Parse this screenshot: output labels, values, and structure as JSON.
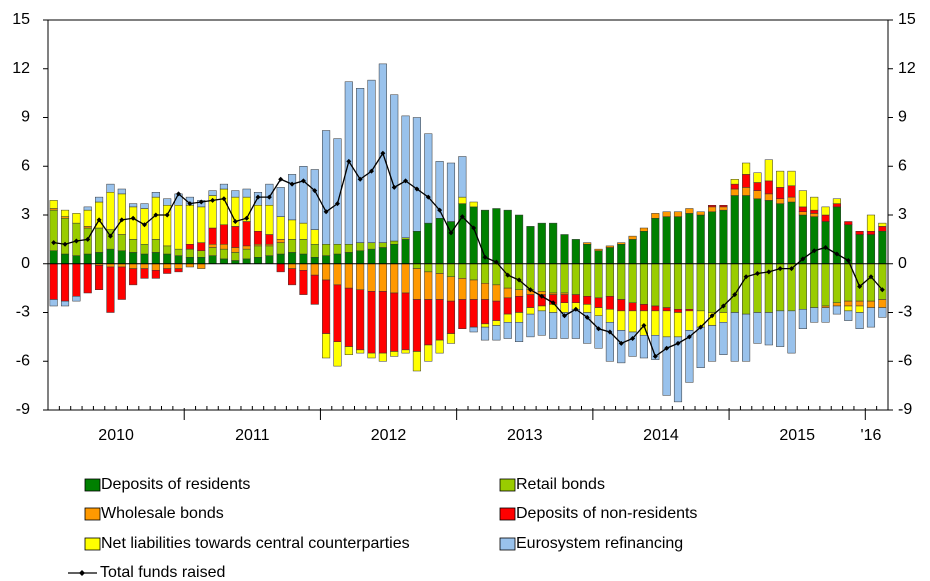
{
  "chart_data": {
    "type": "bar",
    "stacked": true,
    "categories": [
      null,
      null,
      null,
      null,
      null,
      "2010",
      null,
      null,
      null,
      null,
      null,
      null,
      null,
      null,
      null,
      null,
      null,
      "2011",
      null,
      null,
      null,
      null,
      null,
      null,
      null,
      null,
      null,
      null,
      null,
      "2012",
      null,
      null,
      null,
      null,
      null,
      null,
      null,
      null,
      null,
      null,
      null,
      "2013",
      null,
      null,
      null,
      null,
      null,
      null,
      null,
      null,
      null,
      null,
      null,
      "2014",
      null,
      null,
      null,
      null,
      null,
      null,
      null,
      null,
      null,
      null,
      null,
      "2015",
      null,
      null,
      null,
      null,
      null,
      null,
      "'16",
      null
    ],
    "ylim": [
      -9,
      15
    ],
    "yticks": [
      -9,
      -6,
      -3,
      0,
      3,
      6,
      9,
      12,
      15
    ],
    "right_axis": true,
    "series": [
      {
        "name": "Deposits of residents",
        "color": "#008000",
        "values": [
          0.8,
          0.6,
          0.5,
          0.6,
          0.7,
          0.9,
          0.8,
          0.7,
          0.6,
          0.7,
          0.6,
          0.5,
          0.4,
          0.4,
          0.5,
          0.3,
          0.2,
          0.3,
          0.4,
          0.5,
          0.6,
          0.7,
          0.6,
          0.4,
          0.5,
          0.6,
          0.7,
          0.8,
          0.9,
          1.0,
          1.2,
          1.5,
          2.0,
          2.5,
          2.8,
          2.6,
          3.7,
          3.5,
          3.3,
          3.4,
          3.3,
          3.0,
          2.3,
          2.5,
          2.5,
          1.8,
          1.5,
          1.2,
          0.8,
          1.0,
          1.2,
          1.5,
          2.0,
          2.8,
          2.9,
          2.9,
          3.1,
          3.0,
          3.2,
          3.3,
          4.2,
          4.2,
          4.0,
          3.9,
          3.7,
          3.8,
          3.0,
          2.9,
          2.6,
          3.5,
          2.4,
          1.8,
          1.8,
          2.0
        ]
      },
      {
        "name": "Retail bonds",
        "color": "#99CC00",
        "values": [
          2.5,
          2.2,
          2.0,
          1.6,
          1.5,
          1.2,
          1.0,
          0.8,
          0.6,
          0.8,
          0.5,
          0.4,
          0.5,
          0.4,
          0.5,
          0.6,
          0.5,
          0.6,
          0.7,
          0.6,
          0.7,
          0.8,
          0.9,
          0.8,
          0.7,
          0.6,
          0.5,
          0.5,
          0.4,
          0.3,
          0.2,
          0.1,
          -0.3,
          -0.5,
          -0.6,
          -0.8,
          -0.9,
          -1.0,
          -1.2,
          -1.3,
          -1.5,
          -1.6,
          -1.6,
          -1.7,
          -1.8,
          -1.8,
          -1.9,
          -2.0,
          -2.1,
          -2.0,
          -2.2,
          -2.4,
          -2.5,
          -2.6,
          -2.7,
          -2.8,
          -2.8,
          -2.9,
          -3.0,
          -3.0,
          -3.0,
          -3.1,
          -3.0,
          -3.0,
          -2.9,
          -2.9,
          -2.8,
          -2.7,
          -2.6,
          -2.4,
          -2.3,
          -2.3,
          -2.3,
          -2.2
        ]
      },
      {
        "name": "Wholesale bonds",
        "color": "#FF9900",
        "values": [
          0.1,
          0.1,
          0.0,
          0.1,
          -0.1,
          -0.2,
          -0.2,
          -0.3,
          -0.3,
          -0.4,
          -0.3,
          -0.3,
          -0.2,
          -0.3,
          0.2,
          0.3,
          0.3,
          0.2,
          0.1,
          0.1,
          0.2,
          -0.3,
          -0.4,
          -0.7,
          -1.0,
          -1.3,
          -1.5,
          -1.6,
          -1.7,
          -1.7,
          -1.8,
          -1.8,
          -1.9,
          -1.7,
          -1.6,
          -1.5,
          -1.3,
          -1.2,
          -1.0,
          -1.0,
          -0.6,
          -0.4,
          -0.3,
          -0.2,
          -0.1,
          -0.1,
          0.0,
          0.1,
          0.1,
          0.1,
          0.1,
          0.2,
          0.2,
          0.3,
          0.3,
          0.3,
          0.3,
          0.2,
          0.3,
          0.2,
          0.4,
          0.5,
          0.5,
          0.4,
          0.3,
          0.3,
          0.2,
          0.2,
          -0.1,
          -0.2,
          -0.3,
          -0.3,
          -0.4,
          -0.5
        ]
      },
      {
        "name": "Deposits of non-residents",
        "color": "#FF0000",
        "values": [
          -2.2,
          -2.3,
          -2.0,
          -1.8,
          -1.5,
          -2.8,
          -2.0,
          -1.0,
          -0.6,
          -0.5,
          -0.3,
          -0.2,
          0.3,
          0.5,
          1.0,
          1.2,
          1.3,
          1.5,
          0.8,
          0.6,
          -0.5,
          -1.0,
          -1.5,
          -1.8,
          -3.3,
          -3.5,
          -3.6,
          -3.7,
          -3.8,
          -3.8,
          -3.6,
          -3.5,
          -3.2,
          -2.8,
          -2.5,
          -2.0,
          -1.8,
          -1.7,
          -1.5,
          -1.2,
          -1.0,
          -1.0,
          -0.8,
          -0.7,
          -0.6,
          -0.5,
          -0.5,
          -0.5,
          -0.6,
          -0.8,
          -0.7,
          -0.5,
          -0.4,
          -0.3,
          -0.2,
          -0.2,
          -0.1,
          0.0,
          0.1,
          0.1,
          0.3,
          0.8,
          0.5,
          0.8,
          0.7,
          0.7,
          0.3,
          0.2,
          0.4,
          0.2,
          0.2,
          0.2,
          0.2,
          0.3
        ]
      },
      {
        "name": "Net liabilities towards central counterparties",
        "color": "#FFFF00",
        "values": [
          0.5,
          0.4,
          0.6,
          1.0,
          1.6,
          2.3,
          2.5,
          2.0,
          2.2,
          2.6,
          2.5,
          2.7,
          2.4,
          2.2,
          2.0,
          2.2,
          1.8,
          1.5,
          1.6,
          1.8,
          1.4,
          1.2,
          1.0,
          0.9,
          -1.5,
          -1.5,
          -0.5,
          -0.2,
          -0.3,
          -0.5,
          -0.3,
          -0.2,
          -1.2,
          -1.0,
          -0.8,
          -0.6,
          0.4,
          0.3,
          -0.2,
          -0.3,
          -0.5,
          -0.6,
          -0.4,
          -0.3,
          -0.5,
          -0.6,
          -0.4,
          -0.5,
          -0.5,
          -0.8,
          -1.2,
          -1.3,
          -1.5,
          -1.5,
          -1.6,
          -1.5,
          -1.2,
          -1.0,
          -0.8,
          -0.6,
          0.3,
          0.7,
          0.6,
          1.3,
          1.0,
          0.9,
          1.0,
          0.8,
          0.5,
          0.3,
          -0.3,
          -0.4,
          1.0,
          0.2
        ]
      },
      {
        "name": "Eurosystem refinancing",
        "color": "#99C2EC",
        "values": [
          -0.4,
          -0.3,
          -0.3,
          0.2,
          0.3,
          0.5,
          0.3,
          0.2,
          0.3,
          0.3,
          0.4,
          0.7,
          0.5,
          0.4,
          0.3,
          0.3,
          0.4,
          0.5,
          0.8,
          1.3,
          1.8,
          2.8,
          3.5,
          3.7,
          7.0,
          6.5,
          10.0,
          9.5,
          10.0,
          11.0,
          9.0,
          7.5,
          7.0,
          5.5,
          3.5,
          3.6,
          2.5,
          -0.3,
          -0.8,
          -0.9,
          -1.0,
          -1.2,
          -1.4,
          -1.5,
          -1.6,
          -1.6,
          -1.8,
          -1.9,
          -2.0,
          -2.4,
          -2.0,
          -1.5,
          -1.4,
          -1.5,
          -3.6,
          -4.0,
          -3.2,
          -2.5,
          -2.2,
          -2.0,
          -3.0,
          -2.9,
          -1.9,
          -2.0,
          -2.2,
          -2.6,
          -1.2,
          -0.9,
          -0.9,
          -0.5,
          -0.6,
          -1.0,
          -1.2,
          -0.6
        ]
      },
      {
        "name": "Total funds raised",
        "type": "line",
        "color": "#000000",
        "values": [
          1.3,
          1.2,
          1.4,
          1.5,
          2.7,
          1.7,
          2.7,
          2.8,
          2.4,
          3.0,
          3.0,
          4.3,
          3.7,
          3.8,
          3.9,
          4.0,
          2.6,
          2.8,
          4.1,
          4.1,
          5.2,
          4.9,
          5.1,
          4.5,
          3.2,
          3.7,
          6.3,
          5.2,
          5.7,
          6.8,
          4.7,
          5.1,
          4.6,
          4.1,
          3.3,
          1.9,
          2.9,
          2.2,
          0.4,
          0.1,
          -0.7,
          -1.0,
          -1.6,
          -2.0,
          -2.4,
          -3.2,
          -2.8,
          -3.3,
          -4.0,
          -4.2,
          -4.9,
          -4.6,
          -3.8,
          -5.7,
          -5.2,
          -4.9,
          -4.5,
          -3.9,
          -3.2,
          -2.6,
          -1.9,
          -0.8,
          -0.6,
          -0.5,
          -0.3,
          -0.3,
          0.3,
          0.8,
          1.0,
          0.6,
          0.2,
          -1.4,
          -0.8,
          -1.6
        ]
      }
    ]
  }
}
